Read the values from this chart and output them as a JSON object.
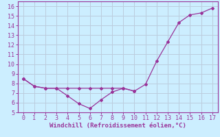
{
  "x_line1": [
    0,
    1,
    2,
    3,
    4,
    5,
    6,
    7,
    8,
    9,
    10,
    11,
    12,
    13,
    14,
    15,
    16,
    17
  ],
  "y_line1": [
    8.5,
    7.7,
    7.5,
    7.5,
    7.5,
    7.5,
    7.5,
    7.5,
    7.5,
    7.5,
    7.2,
    7.9,
    10.3,
    12.3,
    14.3,
    15.1,
    15.3,
    15.8
  ],
  "x_line2": [
    0,
    1,
    2,
    3,
    4,
    5,
    6,
    7,
    8,
    9,
    10
  ],
  "y_line2": [
    8.5,
    7.7,
    7.5,
    7.5,
    6.7,
    5.9,
    5.4,
    6.3,
    7.1,
    7.5,
    7.2
  ],
  "line_color": "#993399",
  "bg_color": "#cceeff",
  "grid_color": "#bbccdd",
  "xlabel": "Windchill (Refroidissement éolien,°C)",
  "xlabel_color": "#993399",
  "xlabel_fontsize": 6.5,
  "tick_color": "#993399",
  "tick_fontsize": 6.0,
  "xlim": [
    -0.5,
    17.5
  ],
  "ylim": [
    5,
    16.5
  ],
  "yticks": [
    5,
    6,
    7,
    8,
    9,
    10,
    11,
    12,
    13,
    14,
    15,
    16
  ],
  "xticks": [
    0,
    1,
    2,
    3,
    4,
    5,
    6,
    7,
    8,
    9,
    10,
    11,
    12,
    13,
    14,
    15,
    16,
    17
  ]
}
